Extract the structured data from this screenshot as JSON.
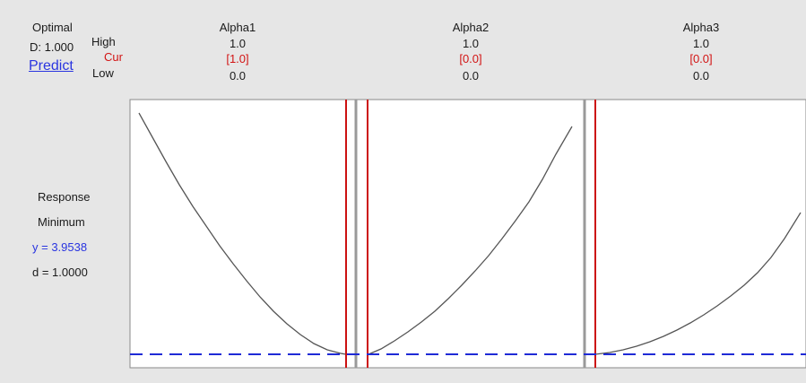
{
  "optimizer": {
    "optimal_label": "Optimal",
    "d_label": "D: 1.000",
    "predict_link": "Predict",
    "high_label": "High",
    "cur_label": "Cur",
    "low_label": "Low"
  },
  "factors": [
    {
      "name": "Alpha1",
      "high": "1.0",
      "cur": "[1.0]",
      "low": "0.0",
      "cur_value": 1.0
    },
    {
      "name": "Alpha2",
      "high": "1.0",
      "cur": "[0.0]",
      "low": "0.0",
      "cur_value": 0.0
    },
    {
      "name": "Alpha3",
      "high": "1.0",
      "cur": "[0.0]",
      "low": "0.0",
      "cur_value": 0.0
    }
  ],
  "response": {
    "label": "Response",
    "goal": "Minimum",
    "y_text": "y = 3.9538",
    "d_text": "d = 1.0000"
  },
  "colors": {
    "current_line": "#cc1111",
    "target_line": "#1f2bd6",
    "curve": "#555555",
    "cur_text": "#d21414",
    "y_text": "#2a35e0"
  }
}
